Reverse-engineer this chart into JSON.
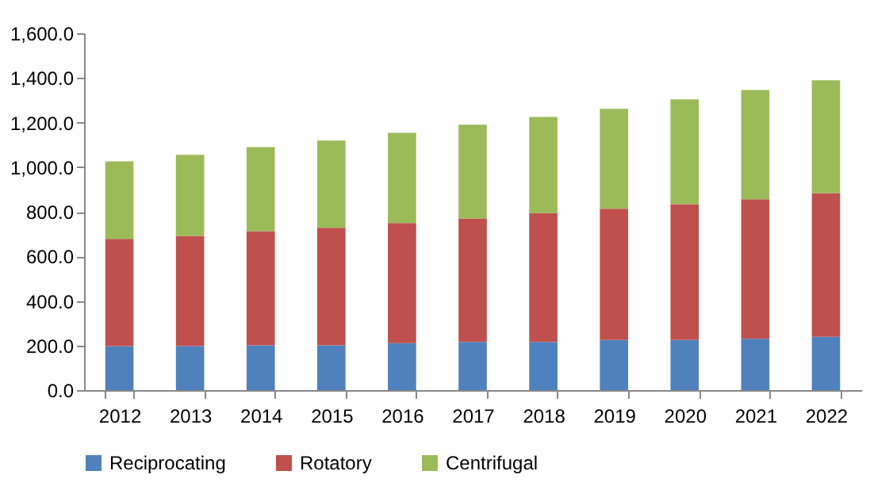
{
  "chart_data": {
    "type": "bar",
    "stacked": true,
    "categories": [
      "2012",
      "2013",
      "2014",
      "2015",
      "2016",
      "2017",
      "2018",
      "2019",
      "2020",
      "2021",
      "2022"
    ],
    "series": [
      {
        "name": "Reciprocating",
        "color": "#4f81bd",
        "values": [
          197,
          197,
          201,
          201,
          211,
          216,
          216,
          225,
          225,
          230,
          239
        ]
      },
      {
        "name": "Rotatory",
        "color": "#c0504d",
        "values": [
          481,
          495,
          512,
          527,
          538,
          554,
          578,
          588,
          609,
          626,
          645
        ]
      },
      {
        "name": "Centrifugal",
        "color": "#9bbb59",
        "values": [
          348,
          363,
          377,
          391,
          405,
          420,
          431,
          448,
          470,
          490,
          505
        ]
      }
    ],
    "ylim": [
      0,
      1600
    ],
    "yticks": [
      {
        "value": 0,
        "label": "0.0"
      },
      {
        "value": 200,
        "label": "200.0"
      },
      {
        "value": 400,
        "label": "400.0"
      },
      {
        "value": 600,
        "label": "600.0"
      },
      {
        "value": 800,
        "label": "800.0"
      },
      {
        "value": 1000,
        "label": "1,000.0"
      },
      {
        "value": 1200,
        "label": "1,200.0"
      },
      {
        "value": 1400,
        "label": "1,400.0"
      },
      {
        "value": 1600,
        "label": "1,600.0"
      }
    ],
    "legend": "bottom",
    "grid": false
  }
}
